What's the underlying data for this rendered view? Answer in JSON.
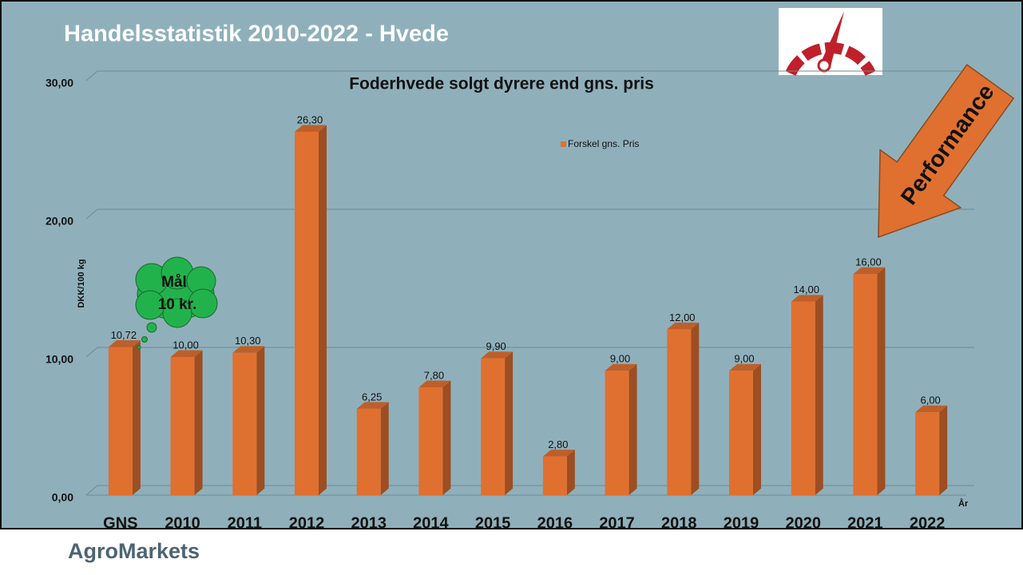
{
  "slide": {
    "title": "Handelsstatistik 2010-2022 - Hvede",
    "footer": "AgroMarkets"
  },
  "chart_data": {
    "type": "bar",
    "title": "Foderhvede solgt dyrere end gns. pris",
    "y_label": "DKK/100 kg",
    "x_label": "År",
    "annotations": [
      "Mål",
      "10 kr.",
      "Performance"
    ],
    "categories": [
      "GNS",
      "2010",
      "2011",
      "2012",
      "2013",
      "2014",
      "2015",
      "2016",
      "2017",
      "2018",
      "2019",
      "2020",
      "2021",
      "2022"
    ],
    "series": [
      {
        "name": "Forskel gns. Pris",
        "color": "#e07030",
        "values": [
          10.72,
          10,
          10.3,
          26.3,
          6.25,
          7.8,
          9.9,
          2.8,
          9,
          12,
          9,
          14,
          16,
          6
        ],
        "value_labels": [
          "10,72",
          "10,00",
          "10,30",
          "26,30",
          "6,25",
          "7,80",
          "9,90",
          "2,80",
          "9,00",
          "12,00",
          "9,00",
          "14,00",
          "16,00",
          "6,00"
        ]
      }
    ],
    "ylim": [
      0,
      30
    ],
    "yticks": [
      {
        "value": 0,
        "label": "0,00"
      },
      {
        "value": 10,
        "label": "10,00"
      },
      {
        "value": 20,
        "label": "20,00"
      },
      {
        "value": 30,
        "label": "30,00"
      }
    ],
    "grid": true
  }
}
